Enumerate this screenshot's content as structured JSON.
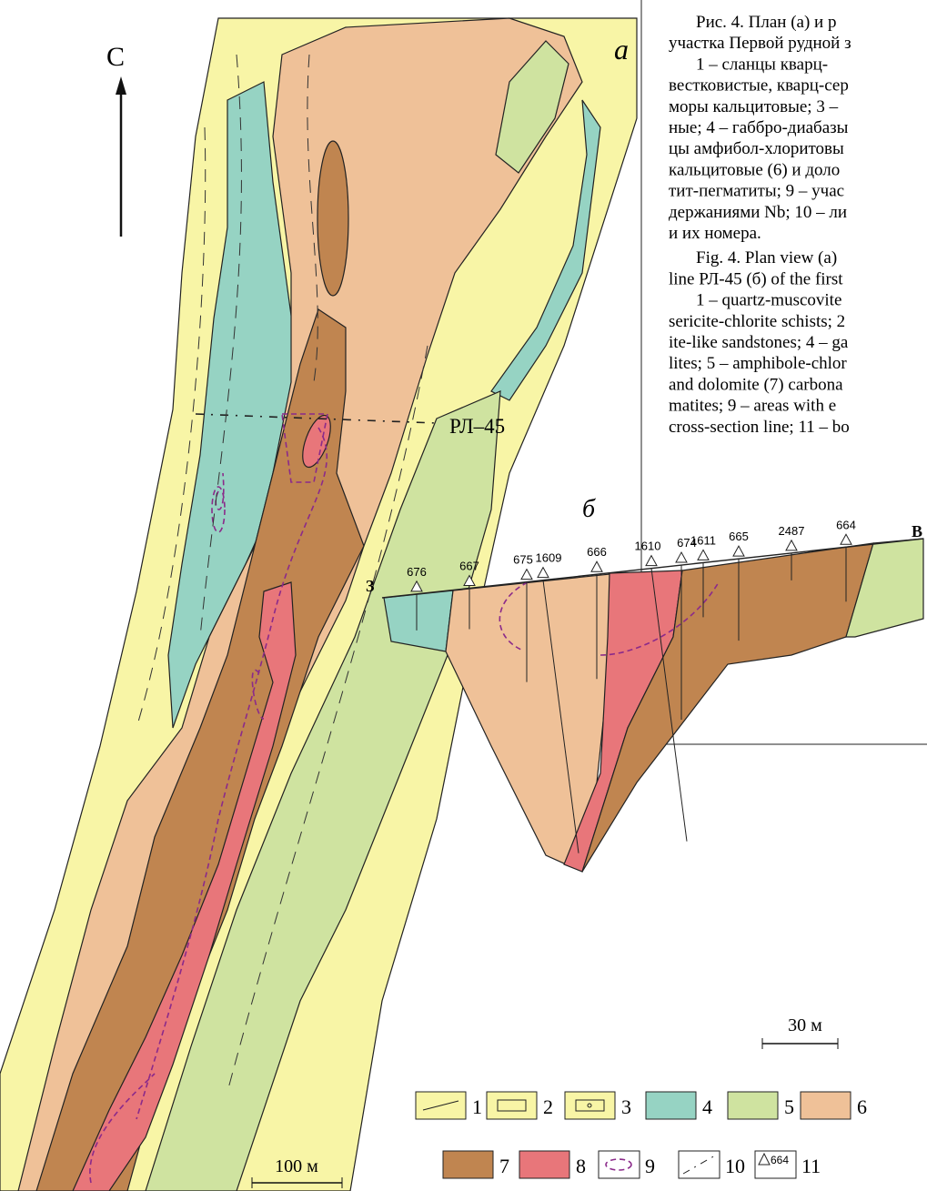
{
  "map": {
    "north_label": "С",
    "panel_label": "а",
    "profile_label": "РЛ–45",
    "scale_label": "100 м"
  },
  "section": {
    "panel_label": "б",
    "west_label": "З",
    "east_label": "В",
    "scale_label": "30 м",
    "boreholes": [
      "676",
      "667",
      "675",
      "1609",
      "666",
      "1610",
      "674",
      "1611",
      "665",
      "2487",
      "664"
    ]
  },
  "legend": {
    "items": [
      "1",
      "2",
      "3",
      "4",
      "5",
      "6",
      "7",
      "8",
      "9",
      "10",
      "11"
    ],
    "icon_label": "664"
  },
  "caption": {
    "lines": [
      "Рис. 4. План (а) и р",
      "участка Первой рудной з",
      "1 – сланцы кварц-",
      "вестковистые, кварц-сер",
      "моры кальцитовые; 3 –",
      "ные; 4 – габбро-диабазы",
      "цы амфибол-хлоритовы",
      "кальцитовые (6) и доло",
      "тит-пегматиты; 9 – учас",
      "держаниями Nb; 10 – ли",
      "и их номера.",
      "Fig. 4. Plan view (a)",
      "line РЛ-45 (б) of the first",
      "1 – quartz-muscovite",
      "sericite-chlorite schists; 2",
      "ite-like sandstones; 4 – ga",
      "lites; 5 – amphibole-chlor",
      "and dolomite (7) carbona",
      "matites; 9 – areas with e",
      "cross-section line; 11 – bo"
    ]
  }
}
